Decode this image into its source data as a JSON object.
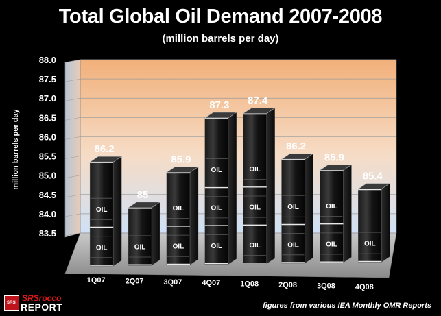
{
  "chart_data": {
    "type": "bar",
    "title": "Total Global Oil Demand 2007-2008",
    "subtitle": "(million barrels per day)",
    "ylabel": "million barrels per day",
    "xlabel": "",
    "categories": [
      "1Q07",
      "2Q07",
      "3Q07",
      "4Q07",
      "1Q08",
      "2Q08",
      "3Q08",
      "4Q08"
    ],
    "values": [
      86.2,
      85,
      85.9,
      87.3,
      87.4,
      86.2,
      85.9,
      85.4
    ],
    "value_labels": [
      "86.2",
      "85",
      "85.9",
      "87.3",
      "87.4",
      "86.2",
      "85.9",
      "85.4"
    ],
    "ylim": [
      83.5,
      88.0
    ],
    "yticks": [
      "83.5",
      "84.0",
      "84.5",
      "85.0",
      "85.5",
      "86.0",
      "86.5",
      "87.0",
      "87.5",
      "88.0"
    ],
    "grid": true,
    "bar_style": "stacked oil barrels",
    "barrel_label": "OIL",
    "colors": {
      "background": "#000000",
      "wall_top": "#f2b07a",
      "wall_bottom": "#d9e6f7",
      "barrel": "#111111"
    }
  },
  "branding": {
    "logo_mark": "SRSI",
    "logo_top": "SRSrocco",
    "logo_bottom": "REPORT"
  },
  "source_note": "figures from various IEA Monthly OMR Reports"
}
